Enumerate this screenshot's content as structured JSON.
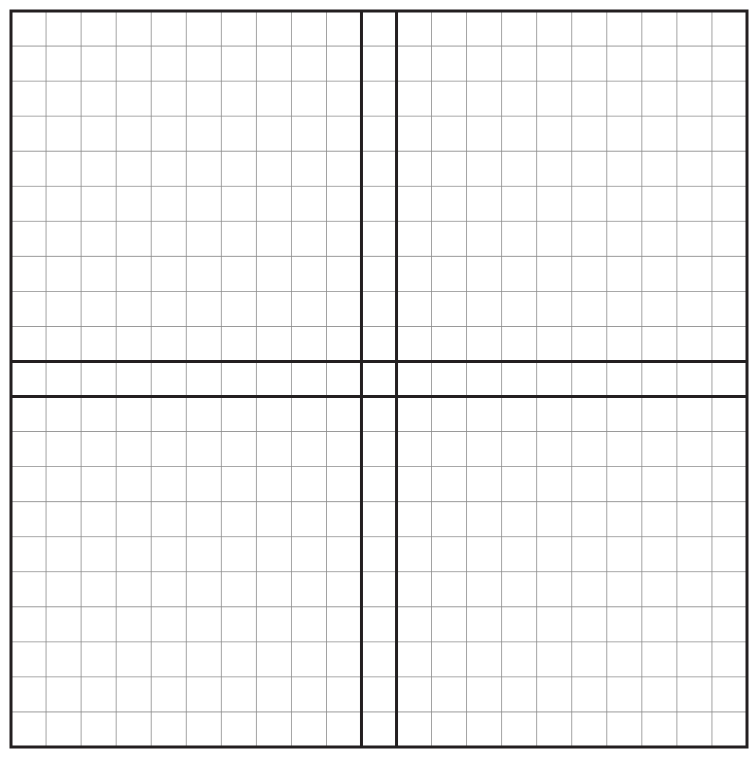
{
  "grid": {
    "columns": 21,
    "rows": 21,
    "bold_column_lines": [
      10,
      11
    ],
    "bold_row_lines": [
      10,
      11
    ],
    "colors": {
      "background": "#ffffff",
      "minor_line": "#8c8c8c",
      "major_line": "#231f20"
    }
  }
}
